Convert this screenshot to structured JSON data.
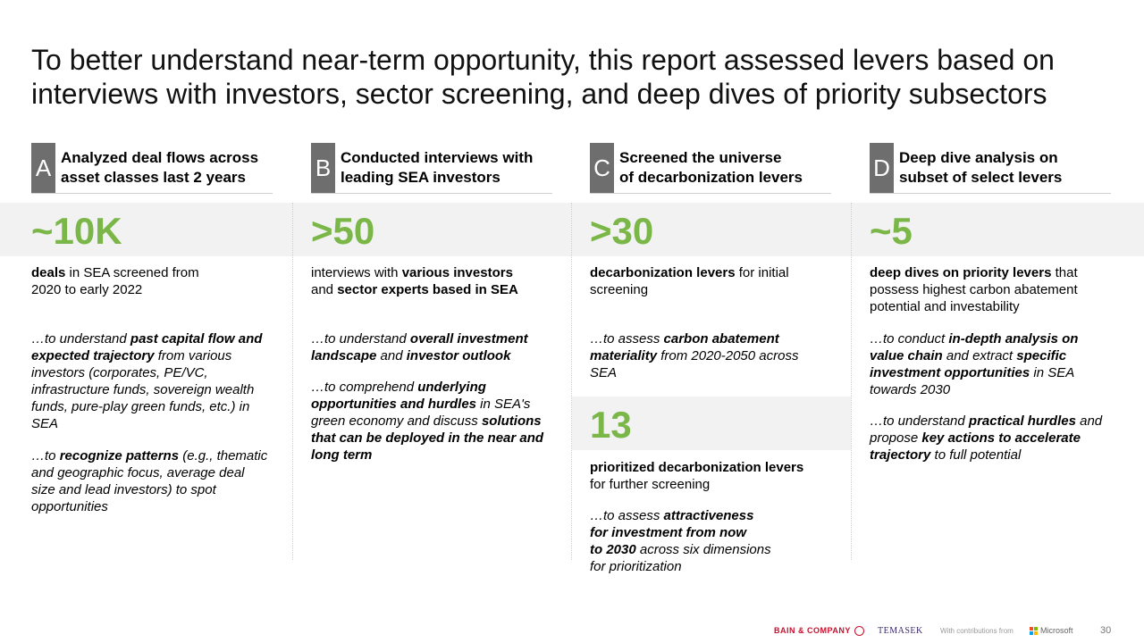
{
  "title": "To better understand near-term opportunity, this report assessed levers based on\ninterviews with investors, sector screening, and deep dives of priority subsectors",
  "columns": [
    {
      "letter": "A",
      "heading": "Analyzed deal flows across\nasset classes last 2 years",
      "big": "~10K",
      "desc": [
        {
          "t": "deals",
          "b": true
        },
        {
          "t": " in SEA screened from\n2020 to early 2022",
          "b": false
        }
      ],
      "notes": [
        [
          {
            "t": "…to understand ",
            "b": false
          },
          {
            "t": "past capital flow and expected trajectory",
            "b": true
          },
          {
            "t": " from various investors (corporates, PE/VC, infrastructure funds, sovereign wealth funds, pure-play green funds, etc.) in SEA",
            "b": false
          }
        ],
        [
          {
            "t": "…to ",
            "b": false
          },
          {
            "t": "recognize patterns",
            "b": true
          },
          {
            "t": " (e.g., thematic and geographic focus, average deal size and lead investors) to spot opportunities",
            "b": false
          }
        ]
      ]
    },
    {
      "letter": "B",
      "heading": "Conducted interviews with\nleading SEA investors",
      "big": ">50",
      "desc": [
        {
          "t": "interviews with ",
          "b": false
        },
        {
          "t": "various investors",
          "b": true
        },
        {
          "t": "\nand ",
          "b": false
        },
        {
          "t": "sector experts based in SEA",
          "b": true
        }
      ],
      "notes": [
        [
          {
            "t": "…to understand ",
            "b": false
          },
          {
            "t": "overall investment landscape",
            "b": true
          },
          {
            "t": " and ",
            "b": false
          },
          {
            "t": "investor outlook",
            "b": true
          }
        ],
        [
          {
            "t": "…to comprehend ",
            "b": false
          },
          {
            "t": "underlying opportunities and hurdles",
            "b": true
          },
          {
            "t": " in SEA's green economy and discuss ",
            "b": false
          },
          {
            "t": "solutions that can be deployed in the near and long term",
            "b": true
          }
        ]
      ]
    },
    {
      "letter": "C",
      "heading": "Screened the universe\nof decarbonization levers",
      "big": ">30",
      "desc": [
        {
          "t": "decarbonization levers",
          "b": true
        },
        {
          "t": " for initial\nscreening",
          "b": false
        }
      ],
      "notes": [
        [
          {
            "t": "…to assess ",
            "b": false
          },
          {
            "t": "carbon abatement materiality",
            "b": true
          },
          {
            "t": " from 2020-2050 across SEA",
            "b": false
          }
        ]
      ],
      "big2": "13",
      "desc2": [
        {
          "t": "prioritized decarbonization levers",
          "b": true
        },
        {
          "t": "\nfor further screening",
          "b": false
        }
      ],
      "notes2": [
        [
          {
            "t": "…to assess ",
            "b": false
          },
          {
            "t": "attractiveness\nfor investment from now\nto 2030",
            "b": true
          },
          {
            "t": " across six dimensions\nfor prioritization",
            "b": false
          }
        ]
      ]
    },
    {
      "letter": "D",
      "heading": "Deep dive analysis on\nsubset of select levers",
      "big": "~5",
      "desc": [
        {
          "t": "deep dives on priority levers",
          "b": true
        },
        {
          "t": " that possess highest carbon abatement potential and investability",
          "b": false
        }
      ],
      "notes": [
        [
          {
            "t": "…to conduct ",
            "b": false
          },
          {
            "t": "in-depth analysis on value chain",
            "b": true
          },
          {
            "t": " and extract ",
            "b": false
          },
          {
            "t": "specific investment opportunities",
            "b": true
          },
          {
            "t": " in SEA towards 2030",
            "b": false
          }
        ],
        [
          {
            "t": "…to understand ",
            "b": false
          },
          {
            "t": "practical hurdles",
            "b": true
          },
          {
            "t": " and propose ",
            "b": false
          },
          {
            "t": "key actions to accelerate trajectory",
            "b": true
          },
          {
            "t": " to full potential",
            "b": false
          }
        ]
      ]
    }
  ],
  "footer": {
    "bain": "BAIN & COMPANY",
    "temasek": "TEMASEK",
    "contrib": "With contributions from",
    "microsoft": "Microsoft",
    "page": "30",
    "ms_colors": [
      "#f25022",
      "#7fba00",
      "#00a4ef",
      "#ffb900"
    ]
  },
  "colors": {
    "accent": "#7ab648",
    "letter_bg": "#6e6e6e",
    "band": "#f2f2f2"
  }
}
